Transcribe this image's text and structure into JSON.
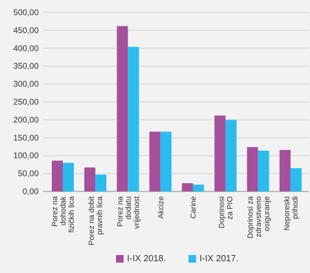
{
  "chart_data": {
    "type": "bar",
    "categories": [
      "Porez na dohodak fizičkih lica",
      "Porez na dobit pravnih lica",
      "Porez na dodatu vrijednost",
      "Akcize",
      "Carine",
      "Doprinosi za PIO",
      "Doprinosi za zdravstveno osiguranje",
      "Neporeski prihodi"
    ],
    "category_lines": [
      [
        "Porez na",
        "dohodak",
        "fizičkih lica"
      ],
      [
        "Porez na dobit",
        "pravnih lica"
      ],
      [
        "Porez na",
        "dodatu",
        "vrijednost"
      ],
      [
        "Akcize"
      ],
      [
        "Carine"
      ],
      [
        "Doprinosi",
        "za PIO"
      ],
      [
        "Doprinosi za",
        "zdravstveno",
        "osiguranje"
      ],
      [
        "Neporeski",
        "prihodi"
      ]
    ],
    "series": [
      {
        "name": "I-IX 2018.",
        "color": "#a4509b",
        "values": [
          86,
          67,
          462,
          167,
          23,
          212,
          124,
          116
        ]
      },
      {
        "name": "I-IX 2017.",
        "color": "#2bbcee",
        "values": [
          80,
          47,
          404,
          167,
          19,
          200,
          114,
          65
        ]
      }
    ],
    "y_tick_labels": [
      "0,00",
      "50,00",
      "100,00",
      "150,00",
      "200,00",
      "250,00",
      "300,00",
      "350,00",
      "400,00",
      "450,00",
      "500,00"
    ],
    "ylim": [
      0,
      500
    ],
    "grid": true,
    "legend_position": "bottom-center",
    "title": "",
    "xlabel": "",
    "ylabel": ""
  }
}
